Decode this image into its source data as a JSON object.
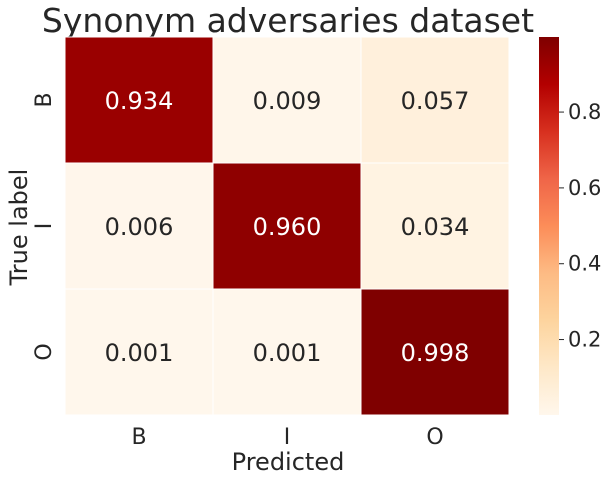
{
  "chart_data": {
    "type": "heatmap",
    "title": "Synonym adversaries dataset",
    "xlabel": "Predicted",
    "ylabel": "True label",
    "x_categories": [
      "B",
      "I",
      "O"
    ],
    "y_categories": [
      "B",
      "I",
      "O"
    ],
    "values": [
      [
        0.934,
        0.009,
        0.057
      ],
      [
        0.006,
        0.96,
        0.034
      ],
      [
        0.001,
        0.001,
        0.998
      ]
    ],
    "value_labels": [
      [
        "0.934",
        "0.009",
        "0.057"
      ],
      [
        "0.006",
        "0.960",
        "0.034"
      ],
      [
        "0.001",
        "0.001",
        "0.998"
      ]
    ],
    "colormap": "OrRd",
    "colorbar": {
      "range": [
        0.001,
        0.998
      ],
      "ticks": [
        0.2,
        0.4,
        0.6,
        0.8
      ],
      "tick_labels": [
        "0.2",
        "0.4",
        "0.6",
        "0.8"
      ]
    }
  }
}
